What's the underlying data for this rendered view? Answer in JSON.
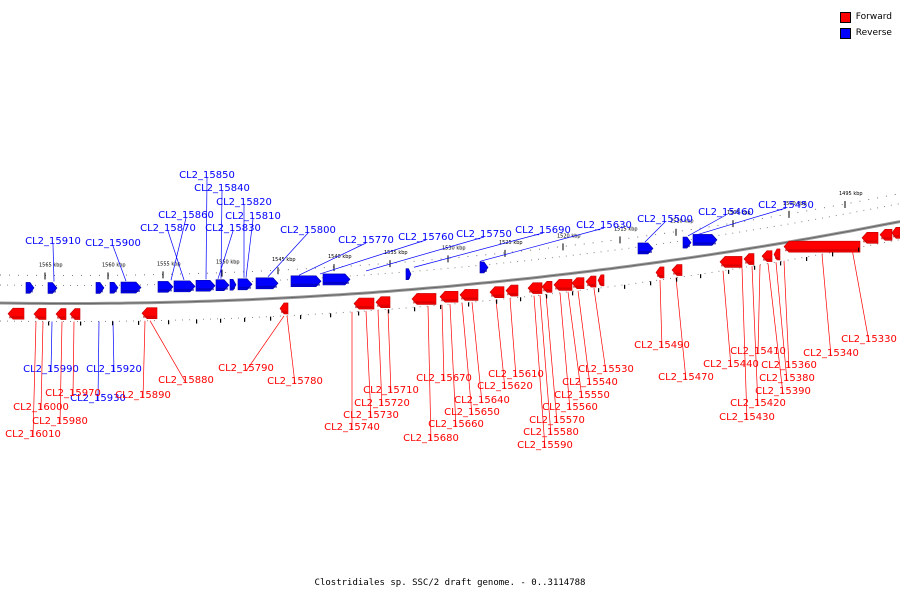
{
  "legend": {
    "items": [
      {
        "label": "Forward",
        "color": "#ff0000"
      },
      {
        "label": "Reverse",
        "color": "#0000ff"
      }
    ]
  },
  "caption": "Clostridiales sp. SSC/2 draft genome. - 0..3114788",
  "colors": {
    "forward": "#ff0000",
    "reverse": "#0000ff",
    "backbone": "#808080"
  },
  "scale_labels": [
    "1565 kbp",
    "1560 kbp",
    "1555 kbp",
    "1550 kbp",
    "1545 kbp",
    "1540 kbp",
    "1535 kbp",
    "1530 kbp",
    "1525 kbp",
    "1520 kbp",
    "1515 kbp",
    "1510 kbp",
    "1505 kbp",
    "1500 kbp",
    "1495 kbp"
  ],
  "reverse_genes": [
    "CL2_15910",
    "CL2_15900",
    "CL2_15870",
    "CL2_15860",
    "CL2_15850",
    "CL2_15840",
    "CL2_15830",
    "CL2_15820",
    "CL2_15810",
    "CL2_15800",
    "CL2_15770",
    "CL2_15760",
    "CL2_15750",
    "CL2_15690",
    "CL2_15630",
    "CL2_15500",
    "CL2_15460",
    "CL2_15450"
  ],
  "reverse_genes_below": [
    "CL2_15990",
    "CL2_15920",
    "CL2_15930"
  ],
  "forward_genes": [
    "CL2_16010",
    "CL2_16000",
    "CL2_15980",
    "CL2_15970",
    "CL2_15890",
    "CL2_15880",
    "CL2_15790",
    "CL2_15780",
    "CL2_15740",
    "CL2_15730",
    "CL2_15720",
    "CL2_15710",
    "CL2_15680",
    "CL2_15670",
    "CL2_15660",
    "CL2_15650",
    "CL2_15640",
    "CL2_15620",
    "CL2_15610",
    "CL2_15590",
    "CL2_15580",
    "CL2_15570",
    "CL2_15560",
    "CL2_15550",
    "CL2_15540",
    "CL2_15530",
    "CL2_15490",
    "CL2_15470",
    "CL2_15440",
    "CL2_15430",
    "CL2_15420",
    "CL2_15410",
    "CL2_15390",
    "CL2_15380",
    "CL2_15360",
    "CL2_15340",
    "CL2_15330"
  ]
}
